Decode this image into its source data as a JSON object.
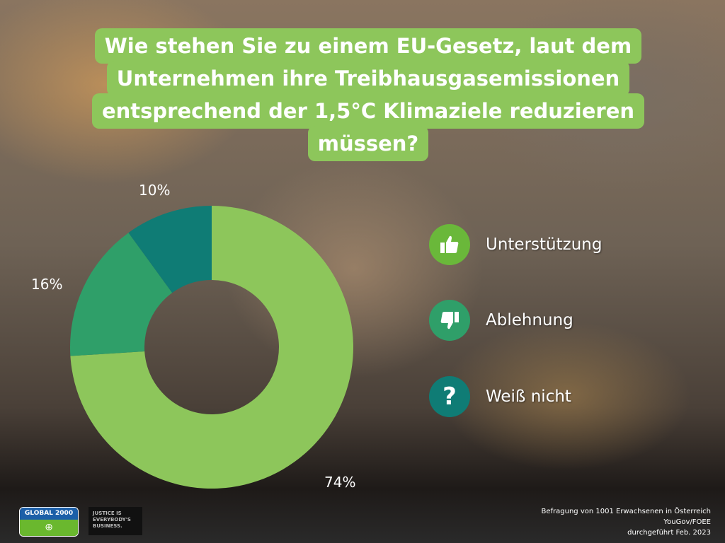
{
  "chart_data": {
    "type": "pie",
    "donut": true,
    "title_lines": [
      "Wie stehen Sie zu einem EU-Gesetz, laut dem",
      "Unternehmen ihre Treibhausgasemissionen",
      "entsprechend der 1,5°C Klimaziele reduzieren",
      "müssen?"
    ],
    "slices": [
      {
        "name": "Unterstützung",
        "value": 74,
        "label": "74%",
        "color": "#8dc65b",
        "icon": "thumbs-up-icon"
      },
      {
        "name": "Ablehnung",
        "value": 16,
        "label": "16%",
        "color": "#2f9f69",
        "icon": "thumbs-down-icon"
      },
      {
        "name": "Weiß nicht",
        "value": 10,
        "label": "10%",
        "color": "#0f7c75",
        "icon": "question-icon"
      }
    ],
    "legend_placement": "right"
  },
  "source": [
    "Befragung von 1001 Erwachsenen in Österreich",
    "YouGov/FOEE",
    "durchgeführt Feb. 2023"
  ],
  "logos": {
    "global2000": "GLOBAL 2000",
    "justice": "JUSTICE IS EVERYBODY'S BUSINESS."
  }
}
